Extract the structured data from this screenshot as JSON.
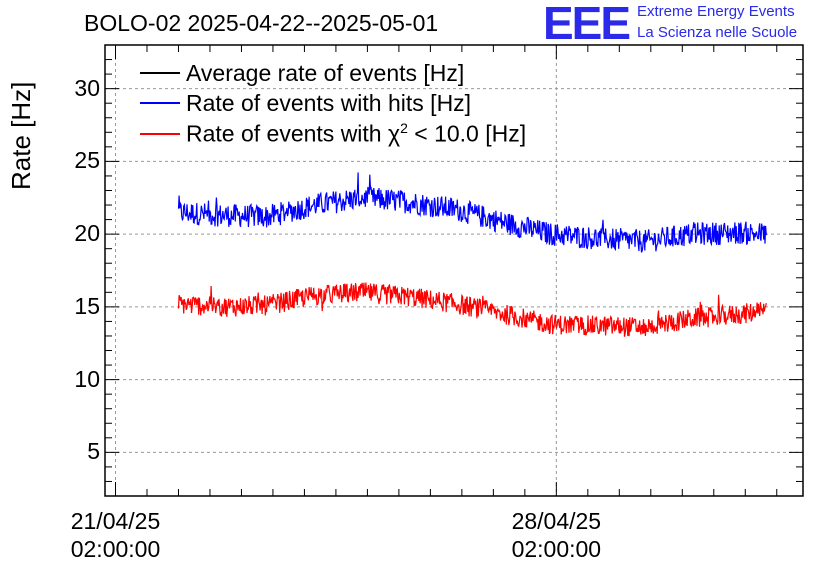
{
  "chart_data": {
    "type": "line",
    "title": "BOLO-02 2025-04-22--2025-05-01",
    "ylabel": "Rate [Hz]",
    "ylim": [
      2,
      33
    ],
    "yticks": [
      5,
      10,
      15,
      20,
      25,
      30
    ],
    "x_range": [
      "2025-04-20 22:00:00",
      "2025-05-02 00:00:00"
    ],
    "xticks": [
      {
        "date": "21/04/25",
        "time": "02:00:00",
        "value": "2025-04-21 02:00:00"
      },
      {
        "date": "28/04/25",
        "time": "02:00:00",
        "value": "2025-04-28 02:00:00"
      }
    ],
    "grid": true,
    "legend_position": "top-left",
    "x_unit": "date-time",
    "series": [
      {
        "name": "Average rate of events [Hz]",
        "color": "#000000",
        "values": []
      },
      {
        "name": "Rate of events with hits [Hz]",
        "color": "#0000ff",
        "x": [
          "2025-04-22 02:00",
          "2025-04-22 18:00",
          "2025-04-23 12:00",
          "2025-04-24 06:00",
          "2025-04-25 00:00",
          "2025-04-25 18:00",
          "2025-04-26 12:00",
          "2025-04-27 06:00",
          "2025-04-28 00:00",
          "2025-04-28 18:00",
          "2025-04-29 12:00",
          "2025-04-30 06:00",
          "2025-05-01 00:00",
          "2025-05-01 10:00"
        ],
        "values": [
          21.5,
          21.3,
          21.2,
          22.0,
          22.5,
          22.2,
          21.7,
          20.8,
          20.0,
          19.7,
          19.5,
          20.0,
          20.1,
          20.0
        ],
        "noise": 0.8
      },
      {
        "name": "Rate of events with χ² < 10.0 [Hz]",
        "color": "#ff0000",
        "x": [
          "2025-04-22 02:00",
          "2025-04-22 18:00",
          "2025-04-23 12:00",
          "2025-04-24 06:00",
          "2025-04-25 00:00",
          "2025-04-25 18:00",
          "2025-04-26 12:00",
          "2025-04-27 06:00",
          "2025-04-28 00:00",
          "2025-04-28 18:00",
          "2025-04-29 12:00",
          "2025-04-30 06:00",
          "2025-05-01 00:00",
          "2025-05-01 10:00"
        ],
        "values": [
          15.2,
          15.0,
          15.1,
          15.8,
          16.0,
          15.7,
          15.2,
          14.5,
          13.8,
          13.7,
          13.6,
          14.2,
          14.5,
          14.7
        ],
        "noise": 0.7
      }
    ]
  },
  "legend": [
    {
      "label_pre": "Rate of events with ",
      "label_chi": "χ",
      "label_sup": "2",
      "label_post": " < 10.0 [Hz]"
    }
  ],
  "logo": {
    "text": "EEE",
    "line1": "Extreme Energy Events",
    "line2": "La Scienza nelle Scuole"
  }
}
